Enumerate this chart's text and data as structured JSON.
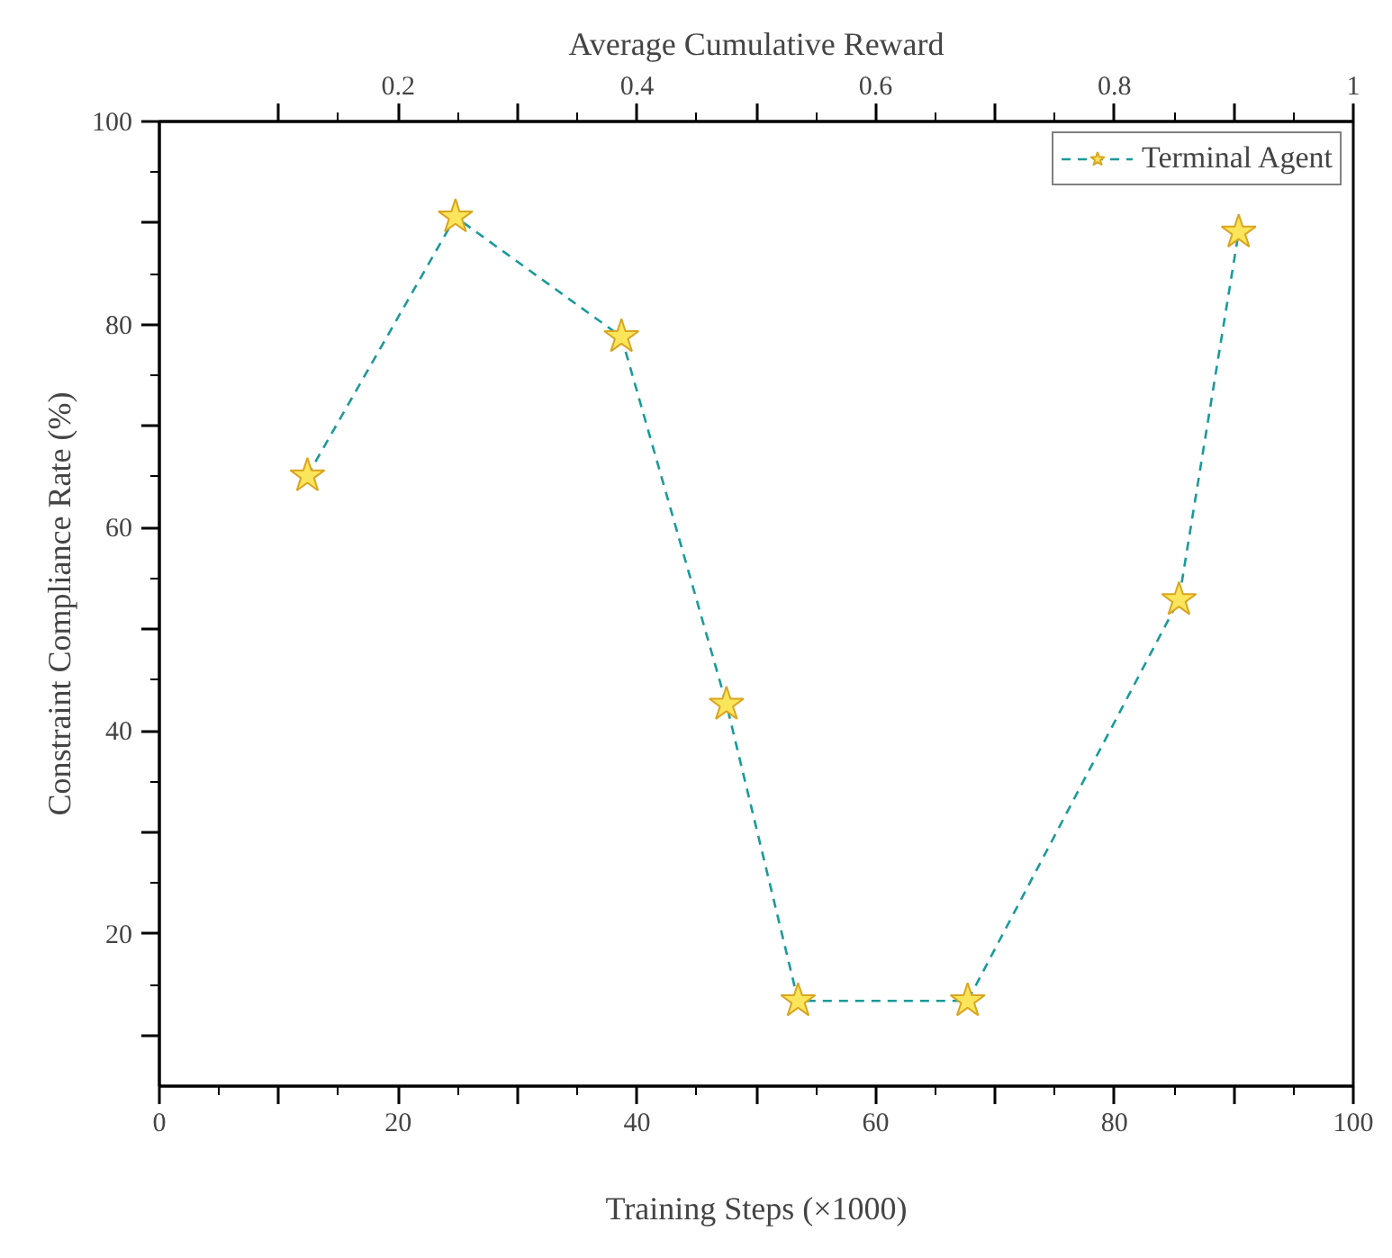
{
  "chart_data": {
    "type": "line",
    "xlabel": "Training Steps (×1000)",
    "ylabel": "Constraint Compliance Rate (%)",
    "x2label": "Average Cumulative Reward",
    "series": [
      {
        "name": "Terminal Agent",
        "color": "#1a9a9a",
        "x": [
          12.4,
          24.8,
          38.7,
          47.5,
          53.5,
          67.7,
          85.4,
          90.4
        ],
        "values": [
          65.1,
          90.6,
          78.8,
          42.6,
          13.4,
          13.4,
          52.9,
          89.1
        ]
      }
    ],
    "xlim": [
      0,
      100
    ],
    "ylim": [
      5,
      100
    ],
    "x2lim": [
      0,
      1
    ],
    "xticks": [
      0,
      {
        "value": 10,
        "label": null
      },
      20,
      {
        "value": 30,
        "label": null
      },
      40,
      {
        "value": 50,
        "label": null
      },
      60,
      {
        "value": 70,
        "label": null
      },
      80,
      {
        "value": 90,
        "label": null
      },
      100
    ],
    "yticks": [
      {
        "value": 10,
        "label": null
      },
      20,
      {
        "value": 30,
        "label": null
      },
      40,
      {
        "value": 50,
        "label": null
      },
      60,
      {
        "value": 70,
        "label": null
      },
      80,
      {
        "value": 90,
        "label": null
      },
      100
    ],
    "x2ticks": [
      {
        "value": 0.1,
        "label": null
      },
      0.2,
      {
        "value": 0.3,
        "label": null
      },
      0.4,
      {
        "value": 0.5,
        "label": null
      },
      0.6,
      {
        "value": 0.7,
        "label": null
      },
      0.8,
      {
        "value": 0.9,
        "label": null
      },
      1
    ],
    "marker": "star",
    "line_style": "dashed",
    "legend": "top right",
    "grid": false
  }
}
